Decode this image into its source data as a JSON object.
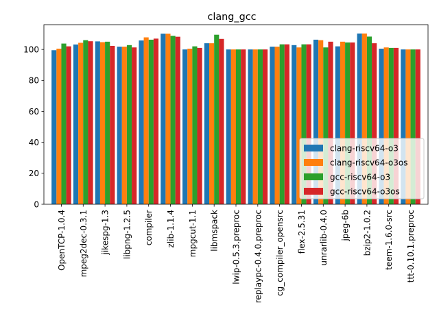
{
  "chart_data": {
    "type": "bar",
    "title": "clang_gcc",
    "xlabel": "",
    "ylabel": "",
    "ylim": [
      0,
      116
    ],
    "yticks": [
      0,
      20,
      40,
      60,
      80,
      100
    ],
    "grid": false,
    "legend_position": "lower-right",
    "categories": [
      "OpenTCP-1.0.4",
      "mpeg2dec-0.3.1",
      "jikespg-1.3",
      "libpng-1.2.5",
      "compiler",
      "zlib-1.1.4",
      "mpgcut-1.1",
      "libmspack",
      "lwip-0.5.3.preproc",
      "replaypc-0.4.0.preproc",
      "cg_compiler_opensrc",
      "flex-2.5.31",
      "unrarlib-0.4.0",
      "jpeg-6b",
      "bzip2-1.0.2",
      "teem-1.6.0-src",
      "ttt-0.10.1.preproc"
    ],
    "series": [
      {
        "name": "clang-riscv64-o3",
        "color": "#1f77b4",
        "values": [
          99.5,
          103.2,
          105.2,
          101.8,
          105.8,
          110.2,
          100.0,
          104.0,
          100.0,
          100.0,
          101.8,
          102.8,
          106.3,
          102.0,
          110.3,
          100.5,
          100.0
        ]
      },
      {
        "name": "clang-riscv64-o3os",
        "color": "#ff7f0e",
        "values": [
          100.5,
          104.3,
          104.7,
          101.8,
          107.8,
          110.2,
          100.5,
          104.0,
          100.0,
          100.0,
          101.8,
          101.3,
          106.0,
          105.0,
          110.3,
          101.3,
          100.0
        ]
      },
      {
        "name": "gcc-riscv64-o3",
        "color": "#2ca02c",
        "values": [
          103.8,
          106.0,
          105.0,
          102.8,
          106.3,
          108.8,
          102.0,
          109.5,
          100.0,
          100.0,
          103.3,
          103.3,
          101.3,
          104.5,
          108.3,
          101.0,
          100.0
        ]
      },
      {
        "name": "gcc-riscv64-o3os",
        "color": "#d62728",
        "values": [
          102.0,
          105.3,
          102.3,
          101.3,
          107.0,
          108.2,
          101.0,
          106.8,
          100.0,
          100.0,
          103.3,
          103.3,
          105.0,
          104.5,
          104.0,
          101.0,
          100.0
        ]
      }
    ]
  }
}
